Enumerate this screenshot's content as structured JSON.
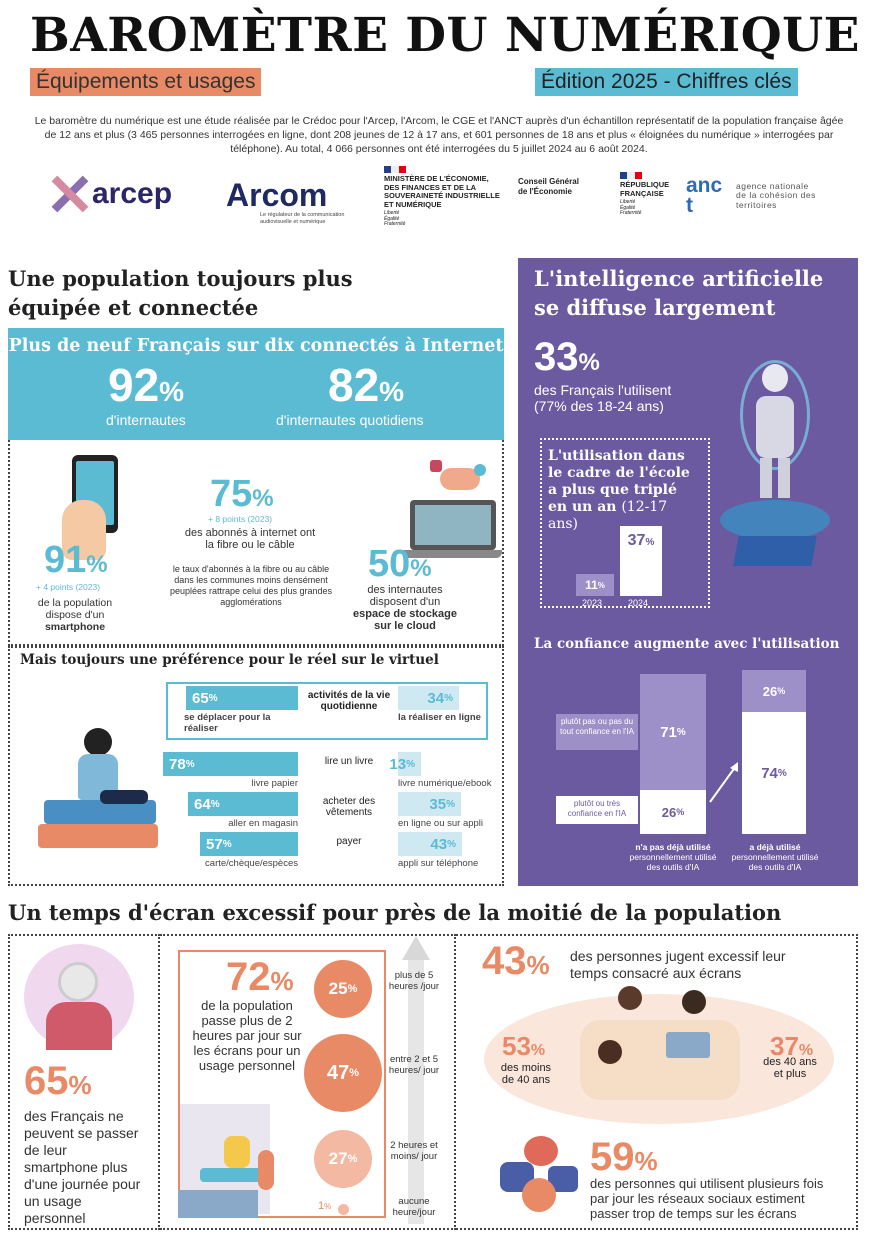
{
  "header": {
    "title": "BAROMÈTRE DU NUMÉRIQUE",
    "subtitle_left": "Équipements et usages",
    "subtitle_right": "Édition 2025 - Chiffres clés",
    "intro": "Le baromètre du numérique est une étude réalisée par le Crédoc pour l'Arcep, l'Arcom, le CGE et l'ANCT auprès d'un échantillon représentatif de la population française âgée de 12 ans et plus (3 465 personnes interrogées en ligne, dont 208 jeunes de 12 à 17 ans, et 601 personnes de 18 ans et plus « éloignées du numérique » interrogées par téléphone). Au total, 4 066 personnes ont été interrogées du 5 juillet 2024 au 6 août 2024.",
    "colors": {
      "salmon": "#e98a66",
      "blue": "#5bbbd3",
      "purple": "#6c5aa0"
    }
  },
  "logos": {
    "arcep": "arcep",
    "arcom": "Arcom",
    "arcom_sub": "Le régulateur de la communication audiovisuelle et numérique",
    "ministere": "MINISTÈRE DE L'ÉCONOMIE, DES FINANCES ET DE LA SOUVERAINETÉ INDUSTRIELLE ET NUMÉRIQUE",
    "devise": "Liberté Égalité Fraternité",
    "cge": "Conseil Général de l'Économie",
    "rf": "RÉPUBLIQUE FRANÇAISE",
    "anct": "anct",
    "anct_sub": "agence nationale de la cohésion des territoires"
  },
  "section1": {
    "title": "Une population toujours plus équipée et connectée",
    "banner": {
      "title": "Plus de neuf Français sur dix connectés à Internet",
      "v1": "92",
      "l1": "d'internautes",
      "v2": "82",
      "l2": "d'internautes quotidiens",
      "pct": "%"
    },
    "smartphone": {
      "value": "91",
      "evo": "+ 4 points (2023)",
      "line1": "de la population",
      "line2": "dispose d'un",
      "line3": "smartphone"
    },
    "fibre": {
      "value": "75",
      "evo": "+ 8 points (2023)",
      "text": "des abonnés à internet ont la fibre ou le câble",
      "note": "le taux d'abonnés à la fibre ou au câble dans les communes moins densément peuplées rattrape celui des plus grandes agglomérations"
    },
    "cloud": {
      "value": "50",
      "line1": "des internautes",
      "line2": "disposent d'un",
      "line3": "espace de stockage",
      "line4": "sur le cloud"
    },
    "reel": {
      "title": "Mais toujours une préférence pour le réel sur le virtuel",
      "rows": [
        {
          "label": "activités de la vie quotidienne",
          "left": "65",
          "left_label": "se déplacer pour la réaliser",
          "right": "34",
          "right_label": "la réaliser en ligne"
        },
        {
          "label": "lire un livre",
          "left": "78",
          "left_label": "livre papier",
          "right": "13",
          "right_label": "livre numérique/ebook"
        },
        {
          "label": "acheter des vêtements",
          "left": "64",
          "left_label": "aller en magasin",
          "right": "35",
          "right_label": "en ligne ou sur appli"
        },
        {
          "label": "payer",
          "left": "57",
          "left_label": "carte/chèque/espèces",
          "right": "43",
          "right_label": "appli sur téléphone"
        }
      ]
    }
  },
  "section2": {
    "title": "L'intelligence artificielle se diffuse largement",
    "value": "33",
    "text": "des Français l'utilisent",
    "sub": "(77% des 18-24 ans)",
    "ecole": {
      "title": "L'utilisation dans le cadre de l'école a plus que triplé en un an",
      "title_suffix": "(12-17 ans)",
      "v2023": "11",
      "v2024": "37",
      "y2023": "2023",
      "y2024": "2024"
    },
    "confiance": {
      "title": "La confiance augmente avec l'utilisation",
      "label_top": "plutôt pas ou pas du tout confiance en l'IA",
      "label_bottom": "plutôt ou très confiance en l'IA",
      "g1_top": "71",
      "g1_bot": "26",
      "g1_bold": "n'a pas déjà utilisé",
      "g1_rest": "personnellement utilisé des outils d'IA",
      "g2_top": "26",
      "g2_bot": "74",
      "g2_bold": "a déjà utilisé",
      "g2_rest": "personnellement utilisé des outils d'IA"
    }
  },
  "section3": {
    "title": "Un temps d'écran excessif pour près de la moitié de la population",
    "smartphone": {
      "value": "65",
      "text": "des Français ne peuvent se passer de leur smartphone plus d'une journée pour un usage personnel"
    },
    "ecran": {
      "value": "72",
      "text": "de la population passe plus de 2 heures par jour sur les écrans pour un usage personnel",
      "circles": [
        {
          "v": "25",
          "label": "plus de 5 heures /jour"
        },
        {
          "v": "47",
          "label": "entre 2 et 5 heures/ jour"
        },
        {
          "v": "27",
          "label": "2 heures et moins/ jour"
        },
        {
          "v": "1",
          "label": "aucune heure/jour"
        }
      ]
    },
    "excessif": {
      "value": "43",
      "text": "des personnes jugent excessif leur temps consacré aux écrans",
      "v1": "53",
      "l1": "des moins de 40 ans",
      "v2": "37",
      "l2": "des 40 ans et plus"
    },
    "reseaux": {
      "value": "59",
      "text": "des personnes qui utilisent plusieurs fois par jour les réseaux sociaux estiment passer trop de temps sur les écrans"
    }
  }
}
